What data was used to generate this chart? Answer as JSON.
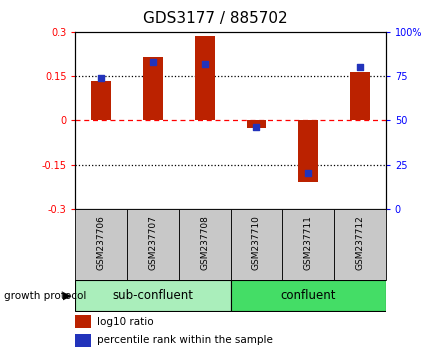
{
  "title": "GDS3177 / 885702",
  "samples": [
    "GSM237706",
    "GSM237707",
    "GSM237708",
    "GSM237710",
    "GSM237711",
    "GSM237712"
  ],
  "log10_ratio": [
    0.135,
    0.215,
    0.285,
    -0.025,
    -0.21,
    0.165
  ],
  "percentile_rank": [
    74,
    83,
    82,
    46,
    20,
    80
  ],
  "bar_color": "#bb2200",
  "dot_color": "#2233bb",
  "ylim_left": [
    -0.3,
    0.3
  ],
  "ylim_right": [
    0,
    100
  ],
  "group1_label": "sub-confluent",
  "group2_label": "confluent",
  "group_label_text": "growth protocol",
  "group1_color": "#aaeebb",
  "group2_color": "#44dd66",
  "tick_bg_color": "#c8c8c8",
  "legend_ratio_label": "log10 ratio",
  "legend_pct_label": "percentile rank within the sample",
  "title_fontsize": 11,
  "tick_fontsize": 7,
  "bar_width": 0.38
}
